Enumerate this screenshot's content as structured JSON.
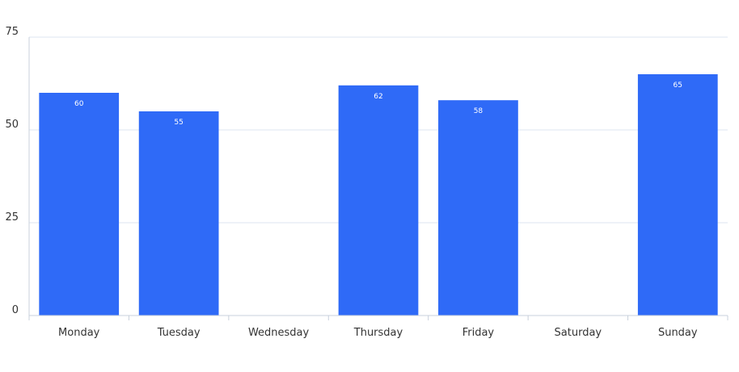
{
  "chart_data": {
    "type": "bar",
    "categories": [
      "Monday",
      "Tuesday",
      "Wednesday",
      "Thursday",
      "Friday",
      "Saturday",
      "Sunday"
    ],
    "values": [
      60,
      55,
      0,
      62,
      58,
      0,
      65
    ],
    "data_labels": [
      "60",
      "55",
      "",
      "62",
      "58",
      "",
      "65"
    ],
    "ylim": [
      0,
      75
    ],
    "yticks": [
      0,
      25,
      50,
      75
    ],
    "ytick_labels": [
      "0",
      "25",
      "50",
      "75"
    ],
    "grid": true,
    "legend": "none",
    "title": "",
    "xlabel": "",
    "ylabel": "",
    "colors": {
      "bar": "#2f6af7",
      "grid": "#dde6f2",
      "axis": "#c8d0dc",
      "text": "#333333",
      "data_label": "#ffffff"
    }
  }
}
